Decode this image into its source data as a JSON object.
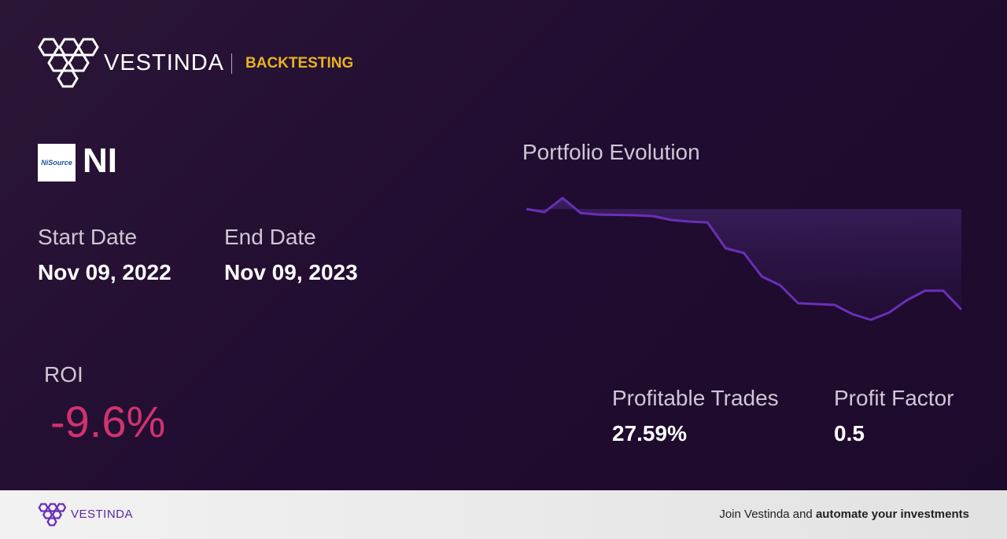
{
  "header": {
    "brand": "VESTINDA",
    "section": "BACKTESTING"
  },
  "asset": {
    "logo_text": "NiSource",
    "ticker": "NI"
  },
  "dates": {
    "start_label": "Start Date",
    "start": "Nov 09, 2022",
    "end_label": "End Date",
    "end": "Nov 09, 2023"
  },
  "metrics": {
    "roi_label": "ROI",
    "roi": "-9.6%",
    "profitable_trades_label": "Profitable Trades",
    "profitable_trades": "27.59%",
    "profit_factor_label": "Profit Factor",
    "profit_factor": "0.5"
  },
  "chart_data": {
    "type": "line",
    "title": "Portfolio Evolution",
    "color": "#6a2fb8",
    "values": [
      0,
      -0.3,
      1.05,
      -0.38,
      -0.53,
      -0.56,
      -0.6,
      -0.68,
      -1.05,
      -1.2,
      -1.28,
      -3.75,
      -4.2,
      -6.45,
      -7.28,
      -9.0,
      -9.08,
      -9.15,
      -10.05,
      -10.58,
      -9.9,
      -8.7,
      -7.8,
      -7.8,
      -9.6
    ]
  },
  "footer": {
    "brand": "VESTINDA",
    "cta": "Join Vestinda and",
    "cta_bold": "automate your investments"
  }
}
